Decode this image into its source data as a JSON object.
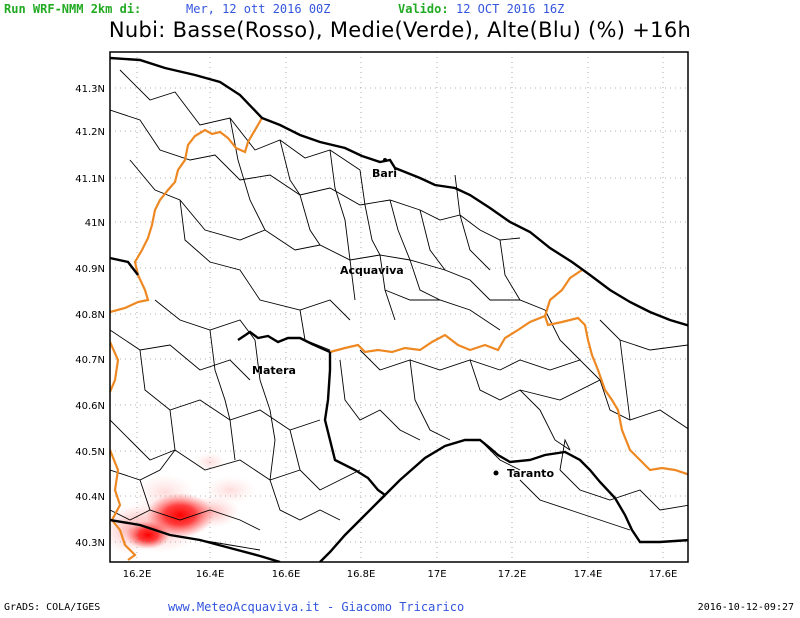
{
  "header": {
    "run_label": "Run WRF-NMM 2km di:",
    "run_value": "Mer, 12 ott 2016 00Z",
    "valid_label": "Valido:",
    "valid_value": "12 OCT 2016 16Z"
  },
  "title": "Nubi: Basse(Rosso), Medie(Verde), Alte(Blu) (%) +16h",
  "axes": {
    "lon_ticks": [
      "16.2E",
      "16.4E",
      "16.6E",
      "16.8E",
      "17E",
      "17.2E",
      "17.4E",
      "17.6E"
    ],
    "lat_ticks": [
      "41.3N",
      "41.2N",
      "41.1N",
      "41N",
      "40.9N",
      "40.8N",
      "40.7N",
      "40.6N",
      "40.5N",
      "40.4N",
      "40.3N"
    ]
  },
  "cities": [
    {
      "name": "Bari"
    },
    {
      "name": "Acquaviva"
    },
    {
      "name": "Matera"
    },
    {
      "name": "Taranto"
    }
  ],
  "colors": {
    "low_cloud": "#ff0000",
    "region_border": "#ee8822",
    "coast": "#000000",
    "grid": "#999999"
  },
  "footer": {
    "grads": "GrADS: COLA/IGES",
    "credits": "www.MeteoAcquaviva.it - Giacomo Tricarico",
    "timestamp": "2016-10-12-09:27"
  }
}
